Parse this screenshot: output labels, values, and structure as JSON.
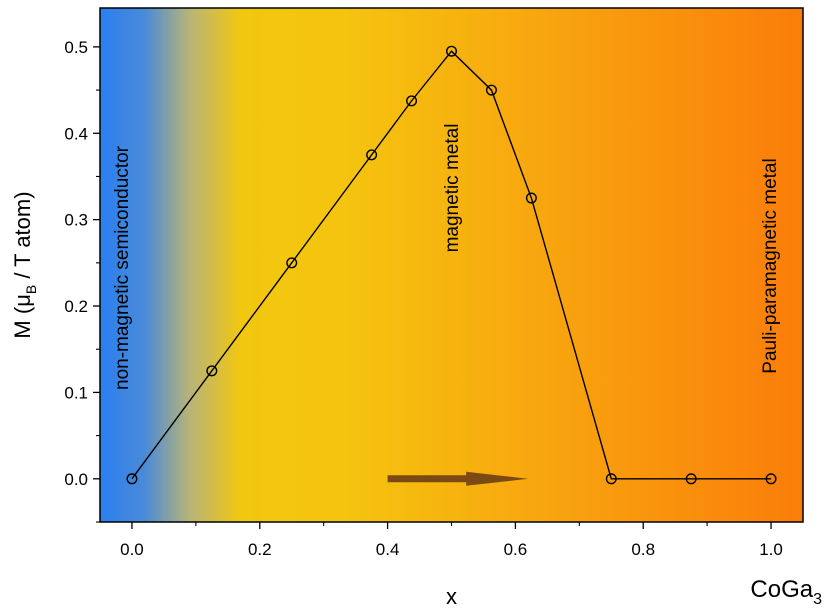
{
  "chart_data": {
    "type": "line",
    "title": "",
    "xlabel": "x",
    "ylabel_prefix": "M (",
    "ylabel_mu": "μ",
    "ylabel_sub": "B",
    "ylabel_suffix": " / T atom)",
    "xlim": [
      -0.05,
      1.05
    ],
    "ylim": [
      -0.05,
      0.545
    ],
    "xticks": [
      0.0,
      0.2,
      0.4,
      0.6,
      0.8,
      1.0
    ],
    "xtick_labels": [
      "0.0",
      "0.2",
      "0.4",
      "0.6",
      "0.8",
      "1.0"
    ],
    "yticks": [
      0.0,
      0.1,
      0.2,
      0.3,
      0.4,
      0.5
    ],
    "ytick_labels": [
      "0.0",
      "0.1",
      "0.2",
      "0.3",
      "0.4",
      "0.5"
    ],
    "grid": false,
    "legend": "none",
    "series": [
      {
        "x": [
          0.0,
          0.125,
          0.25,
          0.375,
          0.4375,
          0.5,
          0.5625,
          0.625,
          0.75,
          0.875,
          1.0
        ],
        "y": [
          0.0,
          0.125,
          0.25,
          0.375,
          0.4375,
          0.495,
          0.45,
          0.325,
          0.0,
          0.0,
          0.0
        ],
        "marker": "open-circle",
        "color": "#000000"
      }
    ],
    "annotations": {
      "region_left": "non-magnetic semiconductor",
      "region_middle": "magnetic metal",
      "region_right": "Pauli-paramagnetic metal",
      "compound_main": "CoGa",
      "compound_sub": "3",
      "arrow": {
        "x_start": 0.4,
        "x_end": 0.62,
        "y": 0.0,
        "color": "#7a4a12"
      }
    },
    "background_gradient": {
      "stops": [
        {
          "x": -0.05,
          "color": "#2a7ff0"
        },
        {
          "x": 0.02,
          "color": "#4a8ad8"
        },
        {
          "x": 0.09,
          "color": "#b8b478"
        },
        {
          "x": 0.17,
          "color": "#f2c70f"
        },
        {
          "x": 0.33,
          "color": "#f5c40f"
        },
        {
          "x": 0.62,
          "color": "#f8a80f"
        },
        {
          "x": 1.05,
          "color": "#fa7d0a"
        }
      ]
    }
  }
}
